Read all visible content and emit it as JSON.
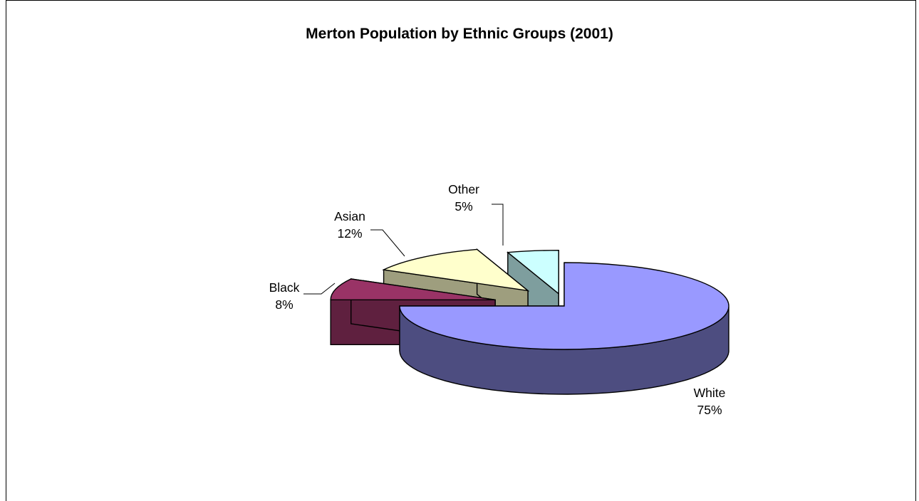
{
  "chart_data": {
    "type": "pie",
    "title": "Merton Population by Ethnic Groups (2001)",
    "slices": [
      {
        "name": "White",
        "value": 75,
        "label": "75%",
        "color": "#9999FF"
      },
      {
        "name": "Black",
        "value": 8,
        "label": "8%",
        "color": "#993366"
      },
      {
        "name": "Asian",
        "value": 12,
        "label": "12%",
        "color": "#FFFFCC"
      },
      {
        "name": "Other",
        "value": 5,
        "label": "5%",
        "color": "#CCFFFF"
      }
    ],
    "style": "3d-exploded",
    "legend": "none"
  }
}
